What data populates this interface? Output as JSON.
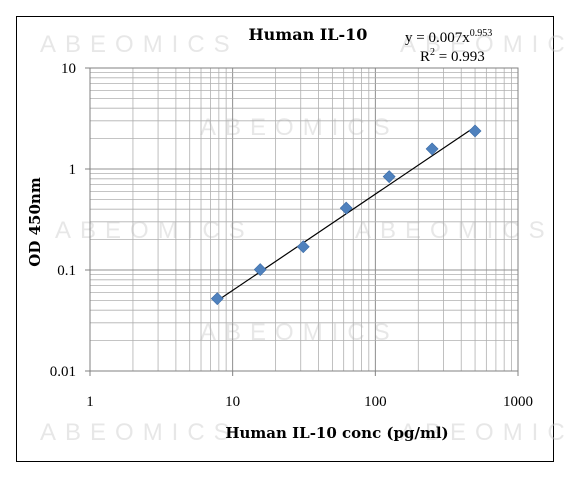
{
  "watermark": "ABEOMICS",
  "chart_data": {
    "type": "scatter",
    "title": "Human IL-10",
    "xlabel": "Human IL-10 conc (pg/ml)",
    "ylabel": "OD 450nm",
    "x_scale": "log",
    "y_scale": "log",
    "xlim": [
      1,
      1000
    ],
    "ylim": [
      0.01,
      10
    ],
    "x_ticks": [
      "1",
      "10",
      "100",
      "1000"
    ],
    "y_ticks": [
      "0.01",
      "0.1",
      "1",
      "10"
    ],
    "grid": true,
    "legend": "none",
    "marker_color": "#4f81bd",
    "series": [
      {
        "x": [
          7.8,
          15.6,
          31.25,
          62.5,
          125,
          250,
          500
        ],
        "y": [
          0.052,
          0.101,
          0.17,
          0.41,
          0.84,
          1.58,
          2.38
        ]
      }
    ],
    "trendline": {
      "type": "power",
      "coefficient": 0.007,
      "exponent": 0.953,
      "x_range": [
        7.8,
        500
      ],
      "equation_prefix": "y = 0.007x",
      "equation_exponent": "0.953",
      "r2_prefix": "R",
      "r2_exponent": "2",
      "r2_suffix": " = 0.993"
    }
  }
}
